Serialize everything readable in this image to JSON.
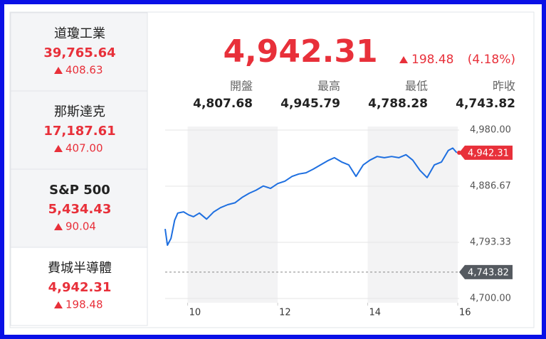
{
  "sidebar": {
    "selected": 3,
    "items": [
      {
        "name": "道瓊工業",
        "price": "39,765.64",
        "change": "408.63"
      },
      {
        "name": "那斯達克",
        "price": "17,187.61",
        "change": "407.00"
      },
      {
        "name": "S&P 500",
        "price": "5,434.43",
        "change": "90.04"
      },
      {
        "name": "費城半導體",
        "price": "4,942.31",
        "change": "198.48"
      }
    ]
  },
  "quote": {
    "price": "4,942.31",
    "change": "198.48",
    "percent": "(4.18%)",
    "stats": [
      {
        "label": "開盤",
        "value": "4,807.68"
      },
      {
        "label": "最高",
        "value": "4,945.79"
      },
      {
        "label": "最低",
        "value": "4,788.28"
      },
      {
        "label": "昨收",
        "value": "4,743.82"
      }
    ]
  },
  "chart_data": {
    "type": "line",
    "color": "#1e6fe0",
    "x": [
      9.5,
      9.55,
      9.63,
      9.71,
      9.78,
      9.91,
      10.02,
      10.13,
      10.26,
      10.42,
      10.58,
      10.73,
      10.89,
      11.05,
      11.21,
      11.37,
      11.52,
      11.68,
      11.84,
      12.0,
      12.16,
      12.32,
      12.47,
      12.63,
      12.79,
      12.95,
      13.11,
      13.26,
      13.42,
      13.58,
      13.74,
      13.9,
      14.05,
      14.21,
      14.37,
      14.53,
      14.69,
      14.85,
      15.0,
      15.16,
      15.32,
      15.48,
      15.64,
      15.79,
      15.89,
      15.98
    ],
    "values": [
      4815.7,
      4788.6,
      4800,
      4830,
      4842,
      4844,
      4839,
      4836,
      4842,
      4832,
      4844,
      4851,
      4856,
      4859,
      4868,
      4875,
      4880,
      4887,
      4883,
      4891,
      4895,
      4903,
      4907,
      4909,
      4915,
      4922,
      4929,
      4934,
      4927,
      4922,
      4903,
      4922,
      4930,
      4936,
      4934,
      4936,
      4934,
      4939,
      4930,
      4913,
      4901,
      4922,
      4927,
      4946,
      4950,
      4942.31
    ],
    "xlim": [
      9.5,
      16
    ],
    "ylim": [
      4700,
      4980
    ],
    "xticks": [
      10,
      12,
      14,
      16
    ],
    "yticks": [
      {
        "value": 4700,
        "label": "4,700.00"
      },
      {
        "value": 4793.33,
        "label": "4,793.33"
      },
      {
        "value": 4886.67,
        "label": "4,886.67"
      },
      {
        "value": 4980,
        "label": "4,980.00"
      }
    ],
    "last": {
      "value": 4942.31,
      "label": "4,942.31"
    },
    "prev_close": {
      "value": 4743.82,
      "label": "4,743.82"
    },
    "grid": true
  }
}
